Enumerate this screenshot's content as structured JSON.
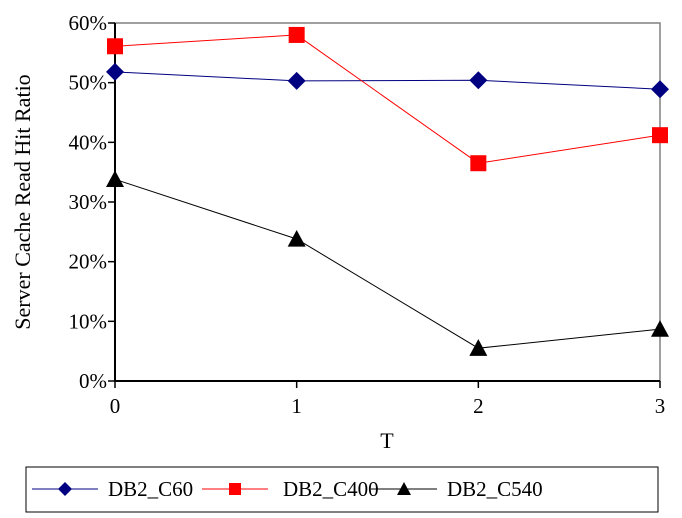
{
  "chart_data": {
    "type": "line",
    "title": "",
    "xlabel": "T",
    "ylabel": "Server Cache Read Hit Ratio",
    "x": [
      0,
      1,
      2,
      3
    ],
    "x_tick_labels": [
      "0",
      "1",
      "2",
      "3"
    ],
    "ylim": [
      0,
      0.6
    ],
    "y_ticks": [
      0,
      0.1,
      0.2,
      0.3,
      0.4,
      0.5,
      0.6
    ],
    "y_tick_labels": [
      "0%",
      "10%",
      "20%",
      "30%",
      "40%",
      "50%",
      "60%"
    ],
    "grid": false,
    "legend_position": "bottom",
    "series": [
      {
        "name": "DB2_C60",
        "color": "#000080",
        "marker": "diamond",
        "values": [
          0.518,
          0.503,
          0.504,
          0.489
        ]
      },
      {
        "name": "DB2_C400",
        "color": "#ff0000",
        "marker": "square",
        "values": [
          0.561,
          0.58,
          0.365,
          0.412
        ]
      },
      {
        "name": "DB2_C540",
        "color": "#000000",
        "marker": "triangle",
        "values": [
          0.338,
          0.238,
          0.055,
          0.087
        ]
      }
    ]
  }
}
